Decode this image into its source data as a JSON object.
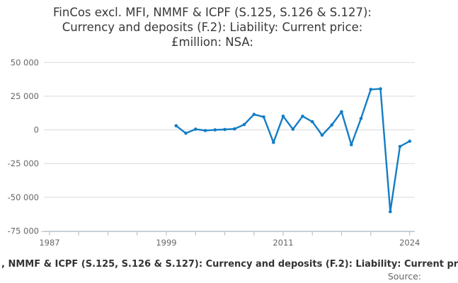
{
  "chart_data": {
    "type": "line",
    "title": "FinCos excl. MFI, NMMF & ICPF (S.125, S.126 & S.127): Currency and deposits (F.2): Liability: Current price: £million: NSA:",
    "title_lines": [
      "FinCos excl. MFI, NMMF & ICPF (S.125, S.126 & S.127):",
      "Currency and deposits (F.2): Liability: Current price:",
      "£million: NSA:"
    ],
    "xlabel": "",
    "ylabel": "",
    "units": "£million",
    "grid": true,
    "legend_position": "none",
    "xlim": [
      1986,
      2025.3
    ],
    "ylim": [
      -75000,
      50000
    ],
    "x": [
      2000,
      2001,
      2002,
      2003,
      2004,
      2005,
      2006,
      2007,
      2008,
      2009,
      2010,
      2011,
      2012,
      2013,
      2014,
      2015,
      2016,
      2017,
      2018,
      2019,
      2020,
      2021,
      2022,
      2023,
      2024
    ],
    "values": [
      3100,
      -2500,
      500,
      -500,
      0,
      300,
      700,
      4000,
      11500,
      9600,
      -9300,
      10100,
      500,
      10100,
      6000,
      -3900,
      3700,
      13500,
      -11000,
      8500,
      30000,
      30400,
      -60700,
      -12300,
      -8400
    ],
    "y_ticks": [
      {
        "value": 50000,
        "label": "50 000"
      },
      {
        "value": 25000,
        "label": "25 000"
      },
      {
        "value": 0,
        "label": "0"
      },
      {
        "value": -25000,
        "label": "-25 000"
      },
      {
        "value": -50000,
        "label": "-50 000"
      },
      {
        "value": -75000,
        "label": "-75 000"
      }
    ],
    "x_ticks": [
      {
        "year": 1987,
        "label": "1987"
      },
      {
        "year": 1990,
        "label": ""
      },
      {
        "year": 1993,
        "label": ""
      },
      {
        "year": 1996,
        "label": ""
      },
      {
        "year": 1999,
        "label": "1999"
      },
      {
        "year": 2002,
        "label": ""
      },
      {
        "year": 2005,
        "label": ""
      },
      {
        "year": 2008,
        "label": ""
      },
      {
        "year": 2011,
        "label": "2011"
      },
      {
        "year": 2014,
        "label": ""
      },
      {
        "year": 2017,
        "label": ""
      },
      {
        "year": 2020,
        "label": ""
      },
      {
        "year": 2024,
        "label": "2024"
      }
    ]
  },
  "footer": {
    "caption": ", NMMF & ICPF (S.125, S.126 & S.127): Currency and deposits (F.2): Liability: Current pr",
    "source": "Source:"
  },
  "colors": {
    "background": "#ffffff",
    "line": "#137dc5",
    "grid": "#d9d9d9",
    "axis": "#b7c3d1",
    "tick_text": "#666666",
    "title_text": "#383838",
    "footer_text": "#333333",
    "source_text": "#666666"
  }
}
